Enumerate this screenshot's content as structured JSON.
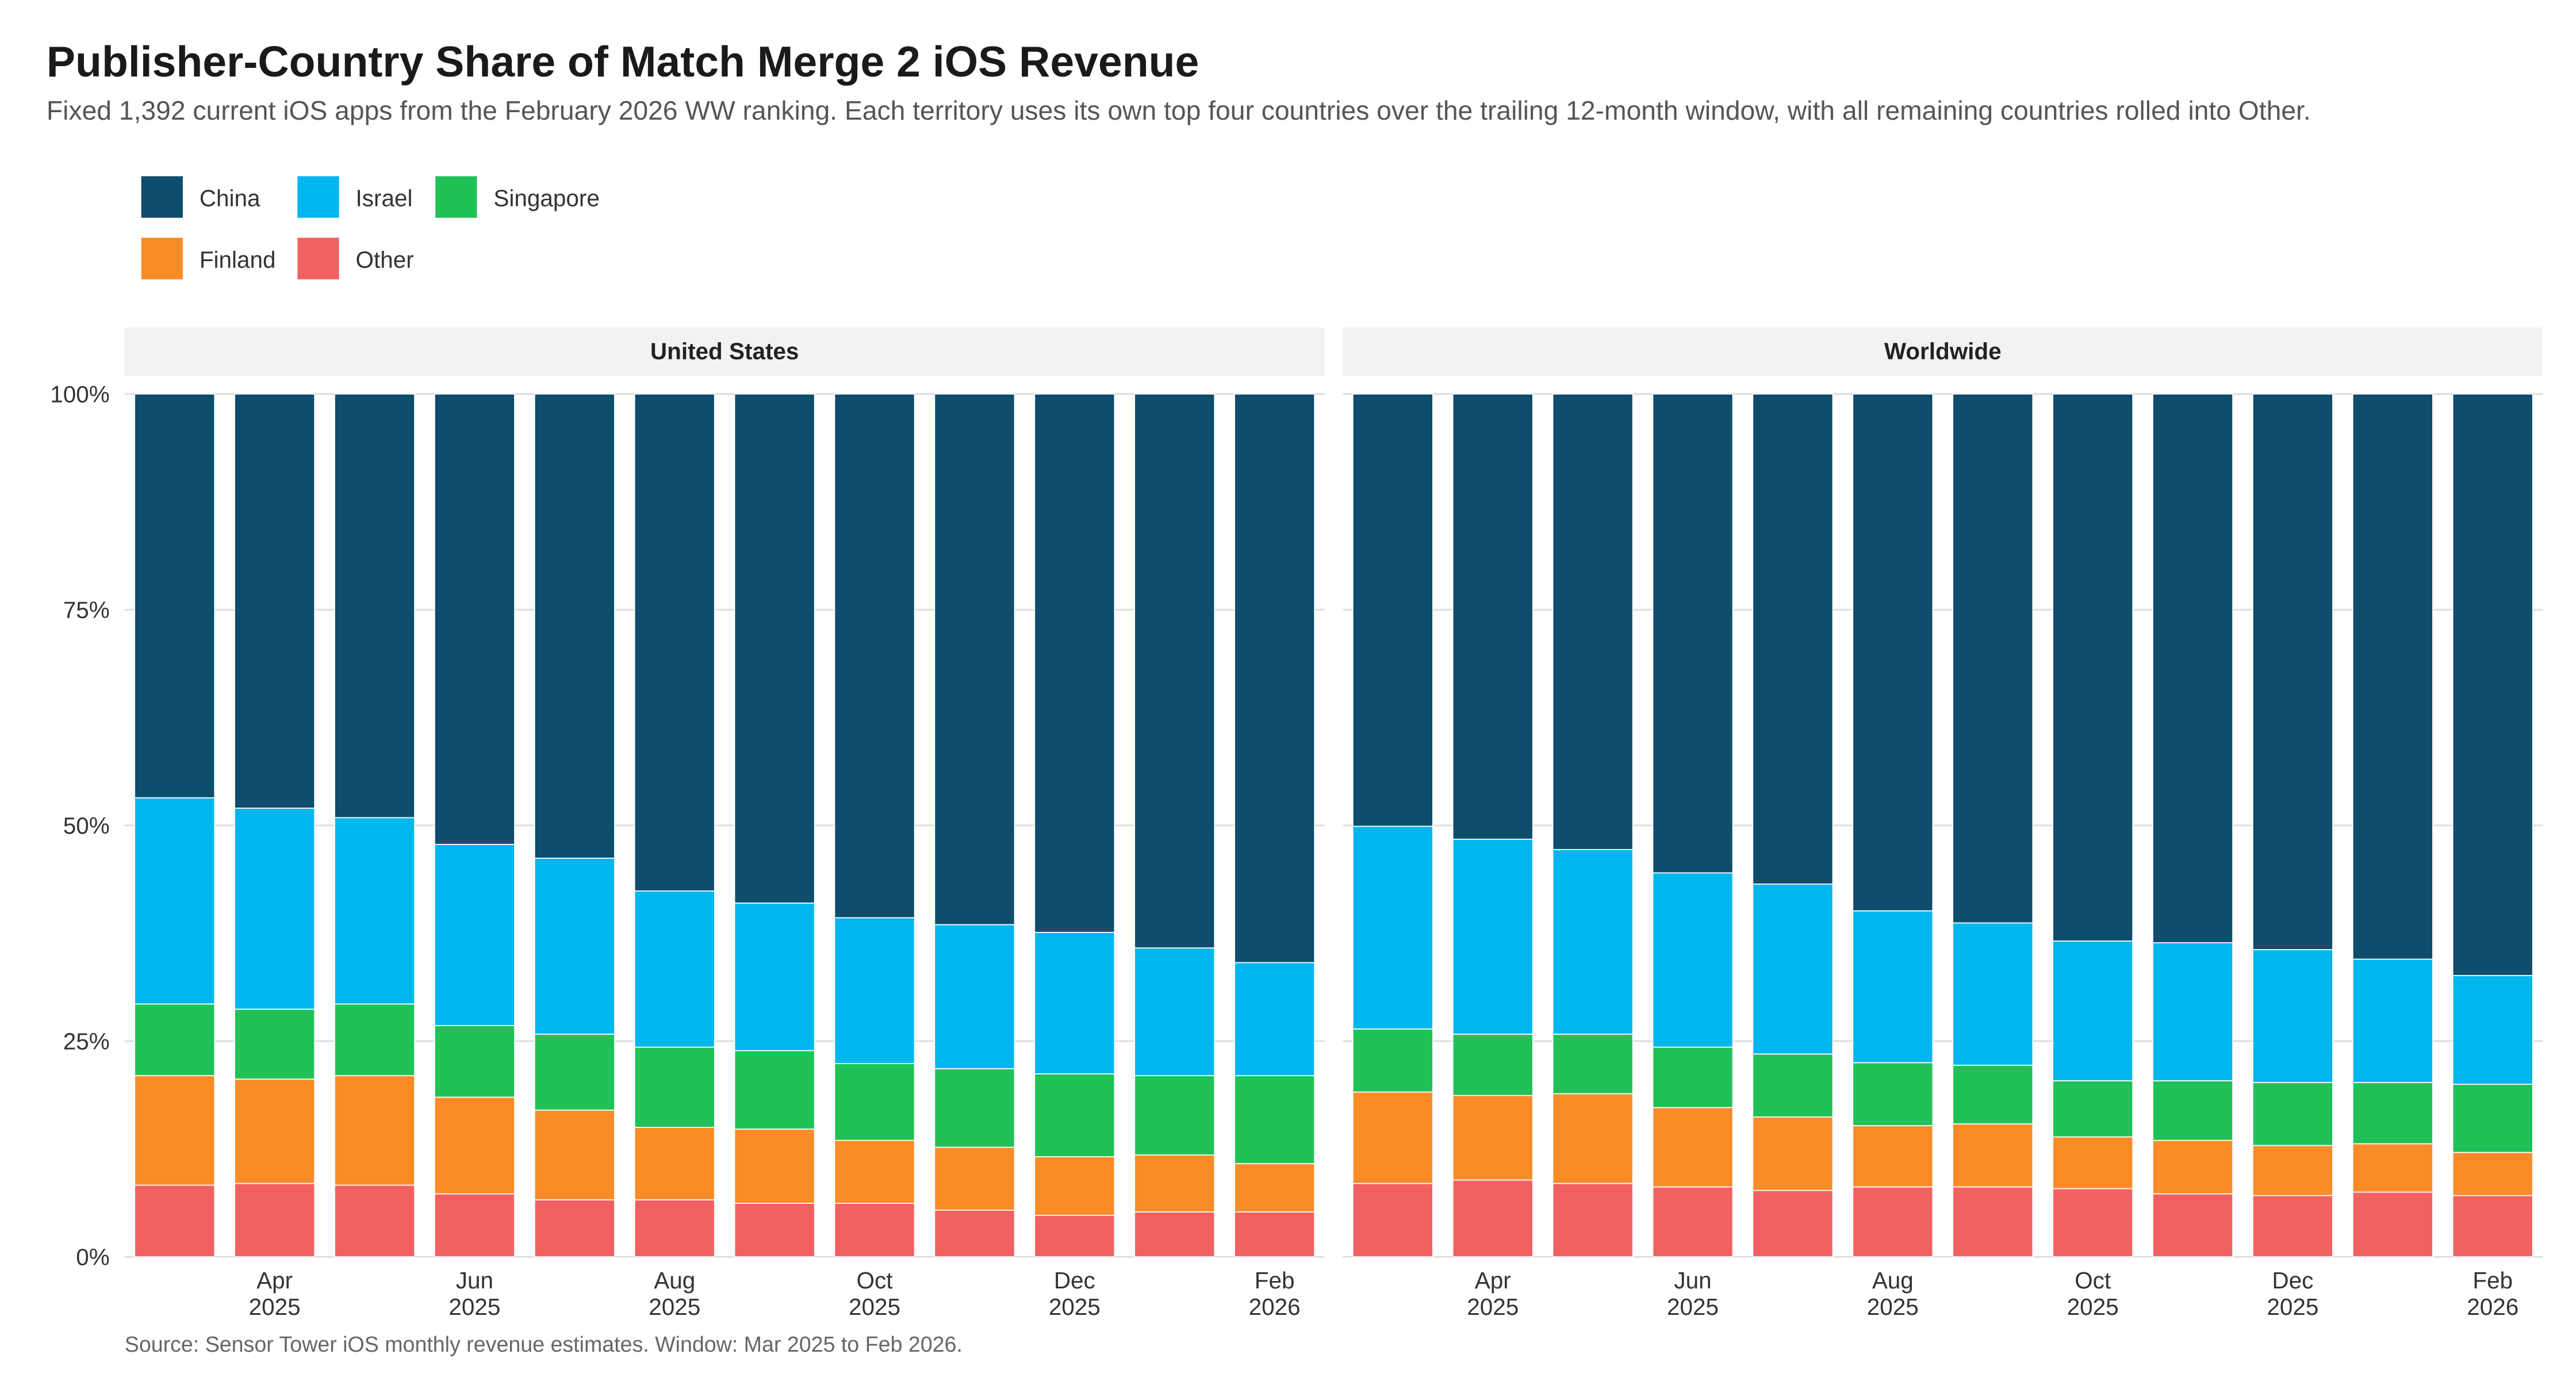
{
  "title": "Publisher-Country Share of Match Merge 2 iOS Revenue",
  "subtitle": "Fixed 1,392 current iOS apps from the February 2026 WW ranking. Each territory uses its own top four countries over the trailing 12-month window, with all remaining countries rolled into Other.",
  "caption": "Source: Sensor Tower iOS monthly revenue estimates. Window: Mar 2025 to Feb 2026.",
  "legend": [
    {
      "name": "China",
      "color": "#0e4d6b"
    },
    {
      "name": "Israel",
      "color": "#00b6ee"
    },
    {
      "name": "Singapore",
      "color": "#20c157"
    },
    {
      "name": "Finland",
      "color": "#fa8c28"
    },
    {
      "name": "Other",
      "color": "#f26161"
    }
  ],
  "chart_data": {
    "type": "bar",
    "stacked": true,
    "percent": true,
    "months": [
      "Mar 2025",
      "Apr 2025",
      "May 2025",
      "Jun 2025",
      "Jul 2025",
      "Aug 2025",
      "Sep 2025",
      "Oct 2025",
      "Nov 2025",
      "Dec 2025",
      "Jan 2026",
      "Feb 2026"
    ],
    "x_tick_labels": [
      {
        "month": "Apr",
        "year": "2025",
        "index": 1
      },
      {
        "month": "Jun",
        "year": "2025",
        "index": 3
      },
      {
        "month": "Aug",
        "year": "2025",
        "index": 5
      },
      {
        "month": "Oct",
        "year": "2025",
        "index": 7
      },
      {
        "month": "Dec",
        "year": "2025",
        "index": 9
      },
      {
        "month": "Feb",
        "year": "2026",
        "index": 11
      }
    ],
    "y_ticks": [
      "0%",
      "25%",
      "50%",
      "75%",
      "100%"
    ],
    "ylim": [
      0,
      100
    ],
    "grid": true,
    "legend_position": "top-left",
    "stack_order_bottom_to_top": [
      "Other",
      "Finland",
      "Singapore",
      "Israel",
      "China"
    ],
    "panels": [
      {
        "title": "United States",
        "series": [
          {
            "name": "Other",
            "values": [
              8.3,
              8.5,
              8.3,
              7.3,
              6.6,
              6.6,
              6.2,
              6.2,
              5.4,
              4.8,
              5.2,
              5.2
            ]
          },
          {
            "name": "Finland",
            "values": [
              12.7,
              12.1,
              12.7,
              11.2,
              10.4,
              8.4,
              8.6,
              7.3,
              7.3,
              6.8,
              6.6,
              5.6
            ]
          },
          {
            "name": "Singapore",
            "values": [
              8.3,
              8.1,
              8.3,
              8.3,
              8.8,
              9.3,
              9.1,
              8.9,
              9.1,
              9.6,
              9.2,
              10.2
            ]
          },
          {
            "name": "Israel",
            "values": [
              23.9,
              23.3,
              21.6,
              21.0,
              20.4,
              18.1,
              17.1,
              16.9,
              16.7,
              16.4,
              14.8,
              13.1
            ]
          },
          {
            "name": "China",
            "values": [
              46.8,
              48.0,
              49.1,
              52.2,
              53.8,
              57.6,
              59.0,
              60.7,
              61.5,
              62.4,
              64.2,
              65.9
            ]
          }
        ]
      },
      {
        "title": "Worldwide",
        "series": [
          {
            "name": "Other",
            "values": [
              8.5,
              8.9,
              8.5,
              8.1,
              7.7,
              8.1,
              8.1,
              7.9,
              7.3,
              7.1,
              7.5,
              7.1
            ]
          },
          {
            "name": "Finland",
            "values": [
              10.6,
              9.8,
              10.4,
              9.2,
              8.5,
              7.1,
              7.3,
              6.0,
              6.2,
              5.8,
              5.6,
              5.0
            ]
          },
          {
            "name": "Singapore",
            "values": [
              7.3,
              7.1,
              6.9,
              7.0,
              7.3,
              7.3,
              6.8,
              6.5,
              6.9,
              7.3,
              7.1,
              7.9
            ]
          },
          {
            "name": "Israel",
            "values": [
              23.5,
              22.6,
              21.4,
              20.2,
              19.7,
              17.6,
              16.5,
              16.2,
              16.0,
              15.4,
              14.3,
              12.6
            ]
          },
          {
            "name": "China",
            "values": [
              50.1,
              51.6,
              52.8,
              55.5,
              56.8,
              59.9,
              61.3,
              63.4,
              63.6,
              64.4,
              65.5,
              67.4
            ]
          }
        ]
      }
    ]
  }
}
